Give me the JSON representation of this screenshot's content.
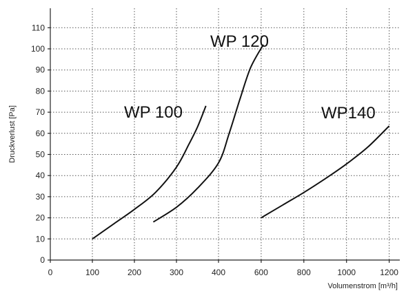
{
  "chart_data": {
    "type": "line",
    "title": "",
    "xlabel": "Volumenstrom [m³/h]",
    "ylabel": "Druckverlust [Pa]",
    "xlim": [
      0,
      1200
    ],
    "ylim": [
      0,
      115
    ],
    "xticks": [
      0,
      100,
      200,
      300,
      400,
      600,
      800,
      1000,
      1200
    ],
    "yticks": [
      0,
      10,
      20,
      30,
      40,
      50,
      60,
      70,
      80,
      90,
      100,
      110
    ],
    "grid": true,
    "series": [
      {
        "name": "WP 100",
        "points": [
          [
            100,
            10
          ],
          [
            150,
            17
          ],
          [
            200,
            24
          ],
          [
            250,
            32
          ],
          [
            300,
            44
          ],
          [
            330,
            55
          ],
          [
            350,
            63
          ],
          [
            370,
            73
          ]
        ]
      },
      {
        "name": "WP 120",
        "points": [
          [
            245,
            18
          ],
          [
            300,
            25
          ],
          [
            350,
            34
          ],
          [
            400,
            46
          ],
          [
            450,
            60
          ],
          [
            500,
            76
          ],
          [
            550,
            91
          ],
          [
            610,
            102
          ]
        ]
      },
      {
        "name": "WP140",
        "points": [
          [
            600,
            20
          ],
          [
            700,
            26
          ],
          [
            800,
            32
          ],
          [
            900,
            38.5
          ],
          [
            1000,
            45.5
          ],
          [
            1100,
            53.5
          ],
          [
            1200,
            63.5
          ]
        ]
      }
    ]
  }
}
